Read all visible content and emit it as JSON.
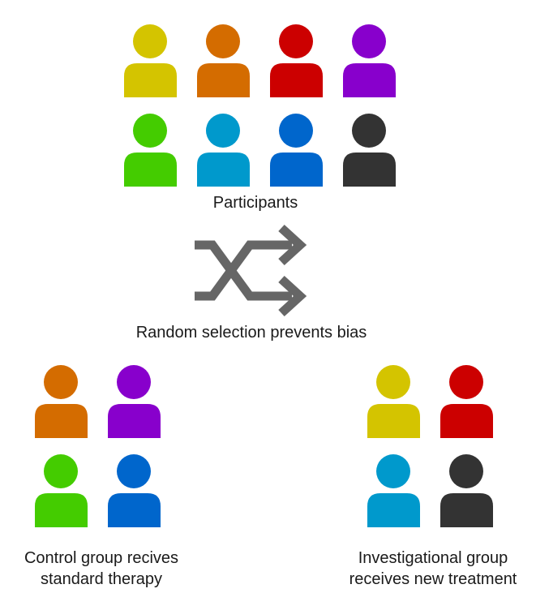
{
  "colors": {
    "yellow": "#d4c400",
    "orange": "#d46c00",
    "red": "#cc0000",
    "purple": "#8800cc",
    "green": "#44cc00",
    "light_blue": "#0099cc",
    "blue": "#0066cc",
    "black": "#333333",
    "shuffle_arrow": "#666666"
  },
  "participants": {
    "label": "Participants",
    "people": [
      "yellow",
      "orange",
      "red",
      "purple",
      "green",
      "light_blue",
      "blue",
      "black"
    ]
  },
  "randomization": {
    "label": "Random selection prevents bias",
    "icon": "shuffle-icon"
  },
  "control_group": {
    "label_line1": "Control group recives",
    "label_line2": "standard therapy",
    "people": [
      "orange",
      "purple",
      "green",
      "blue"
    ]
  },
  "investigational_group": {
    "label_line1": "Investigational group",
    "label_line2": "receives new treatment",
    "people": [
      "yellow",
      "red",
      "light_blue",
      "black"
    ]
  }
}
